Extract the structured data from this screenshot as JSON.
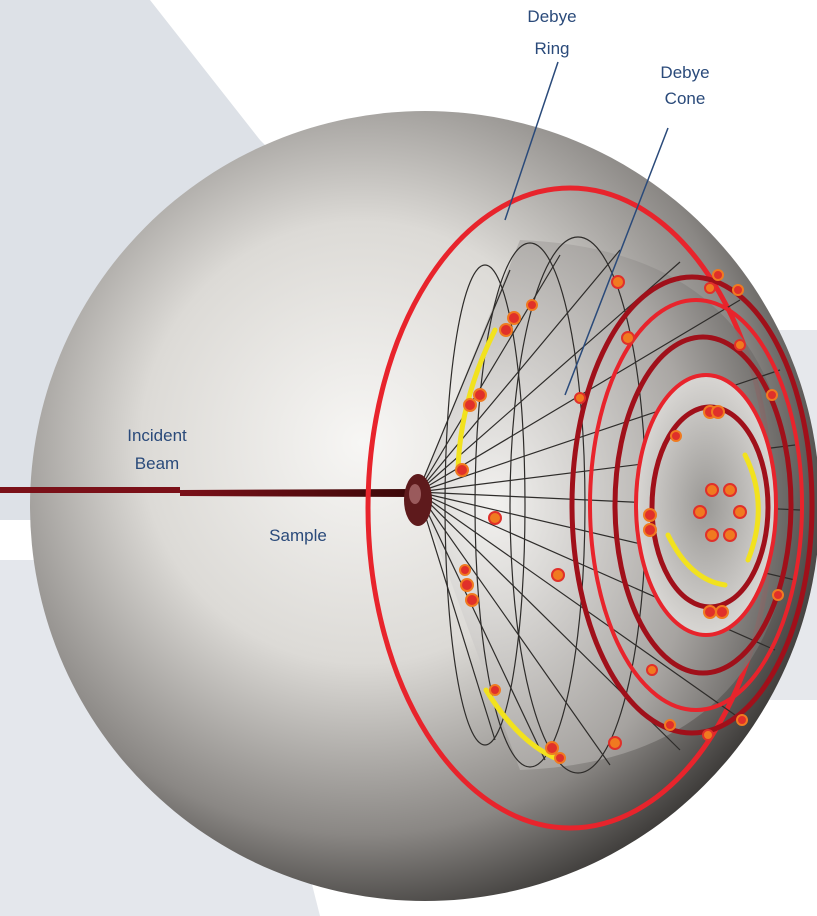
{
  "labels": {
    "debye_ring": [
      "Debye",
      "Ring"
    ],
    "debye_cone": [
      "Debye",
      "Cone"
    ],
    "incident_beam": [
      "Incident",
      "Beam"
    ],
    "sample": "Sample"
  },
  "colors": {
    "ring_red": "#e8242c",
    "ring_dark_red": "#a0101a",
    "spot_orange": "#f07a20",
    "spot_red": "#e0302a",
    "arc_yellow": "#f2e21e",
    "label_blue": "#2a4a7a",
    "background_panel": "#dde1e7"
  }
}
